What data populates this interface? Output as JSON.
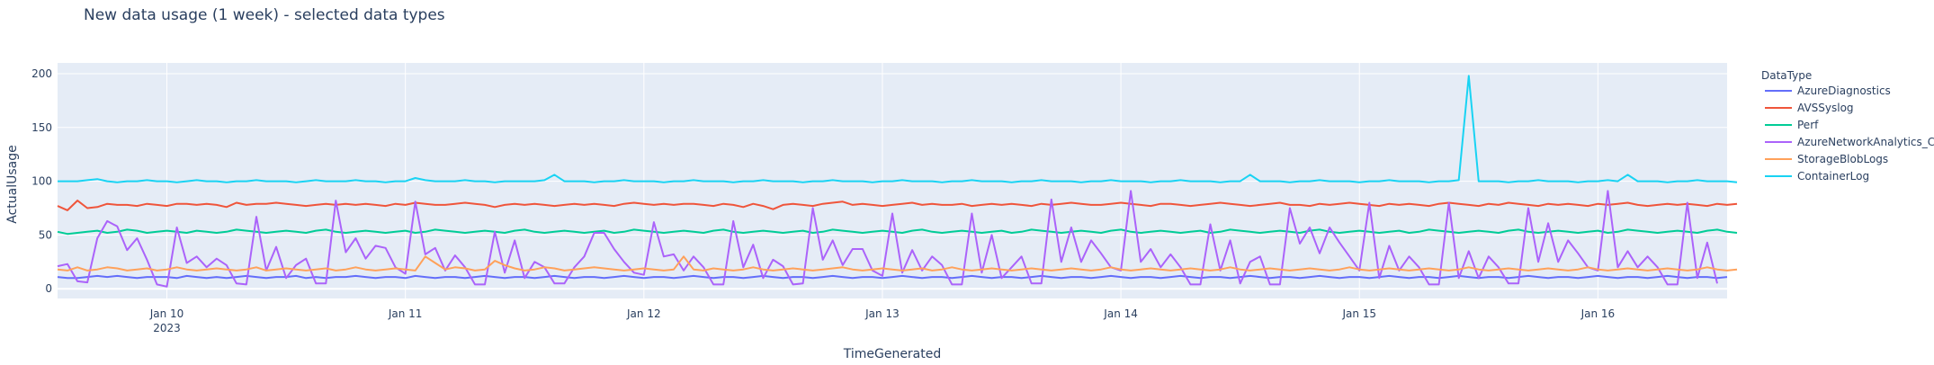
{
  "chart_data": {
    "type": "line",
    "title": "New data usage (1 week) - selected data types",
    "xlabel": "TimeGenerated",
    "ylabel": "ActualUsage",
    "x_range": [
      "2023-01-09T13:00",
      "2023-01-16T13:00"
    ],
    "ylim": [
      -9,
      210
    ],
    "y_ticks": [
      0,
      50,
      100,
      150,
      200
    ],
    "x_ticks": [
      {
        "label": "Jan 10",
        "sub": "2023",
        "t": "2023-01-10T00:00"
      },
      {
        "label": "Jan 11",
        "sub": "",
        "t": "2023-01-11T00:00"
      },
      {
        "label": "Jan 12",
        "sub": "",
        "t": "2023-01-12T00:00"
      },
      {
        "label": "Jan 13",
        "sub": "",
        "t": "2023-01-13T00:00"
      },
      {
        "label": "Jan 14",
        "sub": "",
        "t": "2023-01-14T00:00"
      },
      {
        "label": "Jan 15",
        "sub": "",
        "t": "2023-01-15T00:00"
      },
      {
        "label": "Jan 16",
        "sub": "",
        "t": "2023-01-16T00:00"
      }
    ],
    "grid": true,
    "legend_title": "DataType",
    "legend_position": "right",
    "x_start": "2023-01-09T13:00",
    "x_step_hours": 1,
    "series": [
      {
        "name": "AzureDiagnostics",
        "color": "#636efa",
        "values": [
          11,
          10,
          10,
          11,
          12,
          11,
          12,
          11,
          10,
          11,
          11,
          11,
          10,
          12,
          11,
          10,
          11,
          10,
          11,
          12,
          11,
          10,
          11,
          11,
          12,
          10,
          11,
          10,
          11,
          11,
          12,
          11,
          10,
          11,
          11,
          10,
          12,
          11,
          10,
          11,
          11,
          10,
          11,
          12,
          11,
          10,
          11,
          11,
          10,
          11,
          12,
          11,
          10,
          11,
          11,
          10,
          11,
          12,
          11,
          10,
          11,
          11,
          10,
          11,
          12,
          11,
          10,
          11,
          11,
          10,
          11,
          12,
          11,
          10,
          11,
          11,
          10,
          11,
          12,
          11,
          10,
          11,
          11,
          10,
          11,
          12,
          11,
          10,
          11,
          11,
          10,
          11,
          12,
          11,
          10,
          11,
          11,
          10,
          11,
          12,
          11,
          10,
          11,
          11,
          10,
          11,
          12,
          11,
          10,
          11,
          11,
          10,
          11,
          12,
          11,
          10,
          11,
          11,
          10,
          11,
          12,
          11,
          10,
          11,
          11,
          10,
          11,
          12,
          11,
          10,
          11,
          11,
          10,
          11,
          12,
          11,
          10,
          11,
          11,
          10,
          11,
          12,
          11,
          10,
          11,
          11,
          10,
          11,
          12,
          11,
          10,
          11,
          11,
          10,
          11,
          12,
          11,
          10,
          11,
          11,
          10,
          11,
          12,
          11,
          10,
          11,
          11,
          10,
          11
        ]
      },
      {
        "name": "AVSSyslog",
        "color": "#ef553b",
        "values": [
          77,
          73,
          82,
          75,
          76,
          79,
          78,
          78,
          77,
          79,
          78,
          77,
          79,
          79,
          78,
          79,
          78,
          76,
          80,
          78,
          79,
          79,
          80,
          79,
          78,
          77,
          78,
          79,
          78,
          79,
          78,
          79,
          78,
          77,
          79,
          78,
          80,
          79,
          78,
          78,
          79,
          80,
          79,
          78,
          76,
          78,
          79,
          78,
          79,
          78,
          77,
          78,
          79,
          78,
          79,
          78,
          77,
          79,
          80,
          79,
          78,
          79,
          78,
          79,
          79,
          78,
          77,
          79,
          78,
          76,
          79,
          77,
          74,
          78,
          79,
          78,
          77,
          79,
          80,
          81,
          78,
          79,
          78,
          77,
          78,
          79,
          80,
          78,
          79,
          78,
          78,
          79,
          77,
          78,
          79,
          78,
          79,
          78,
          77,
          79,
          78,
          79,
          80,
          79,
          78,
          78,
          79,
          80,
          79,
          78,
          77,
          79,
          79,
          78,
          77,
          78,
          79,
          80,
          79,
          78,
          77,
          78,
          79,
          80,
          78,
          78,
          77,
          79,
          78,
          79,
          80,
          79,
          78,
          77,
          79,
          78,
          79,
          78,
          77,
          79,
          80,
          79,
          78,
          77,
          79,
          78,
          80,
          79,
          78,
          77,
          79,
          78,
          79,
          78,
          77,
          79,
          78,
          79,
          80,
          78,
          77,
          78,
          79,
          78,
          79,
          78,
          77,
          79,
          78,
          79
        ]
      },
      {
        "name": "Perf",
        "color": "#00cc96",
        "values": [
          53,
          51,
          52,
          53,
          54,
          52,
          53,
          55,
          54,
          52,
          53,
          54,
          53,
          52,
          54,
          53,
          52,
          53,
          55,
          54,
          53,
          52,
          53,
          54,
          53,
          52,
          54,
          55,
          53,
          52,
          53,
          54,
          53,
          52,
          53,
          54,
          52,
          53,
          55,
          54,
          53,
          52,
          53,
          54,
          53,
          52,
          54,
          55,
          53,
          52,
          53,
          54,
          53,
          52,
          53,
          54,
          52,
          53,
          55,
          54,
          53,
          52,
          53,
          54,
          53,
          52,
          54,
          55,
          53,
          52,
          53,
          54,
          53,
          52,
          53,
          54,
          52,
          53,
          55,
          54,
          53,
          52,
          53,
          54,
          53,
          52,
          54,
          55,
          53,
          52,
          53,
          54,
          53,
          52,
          53,
          54,
          52,
          53,
          55,
          54,
          53,
          52,
          53,
          54,
          53,
          52,
          54,
          55,
          53,
          52,
          53,
          54,
          53,
          52,
          53,
          54,
          52,
          53,
          55,
          54,
          53,
          52,
          53,
          54,
          53,
          52,
          54,
          55,
          53,
          52,
          53,
          54,
          53,
          52,
          53,
          54,
          52,
          53,
          55,
          54,
          53,
          52,
          53,
          54,
          53,
          52,
          54,
          55,
          53,
          52,
          53,
          54,
          53,
          52,
          53,
          54,
          52,
          53,
          55,
          54,
          53,
          52,
          53,
          54,
          53,
          52,
          54,
          55,
          53,
          52
        ]
      },
      {
        "name": "AzureNetworkAnalytics_CL",
        "color": "#ab63fa",
        "values": [
          21,
          23,
          7,
          6,
          47,
          63,
          58,
          36,
          47,
          27,
          4,
          2,
          57,
          24,
          30,
          20,
          28,
          22,
          5,
          4,
          67,
          17,
          39,
          10,
          22,
          28,
          5,
          5,
          82,
          34,
          47,
          28,
          40,
          38,
          20,
          14,
          81,
          32,
          38,
          17,
          31,
          20,
          4,
          4,
          53,
          15,
          45,
          10,
          25,
          20,
          5,
          5,
          20,
          30,
          52,
          52,
          37,
          25,
          15,
          13,
          62,
          30,
          32,
          17,
          30,
          20,
          4,
          4,
          63,
          20,
          41,
          10,
          27,
          21,
          4,
          5,
          75,
          27,
          45,
          22,
          37,
          37,
          17,
          12,
          70,
          15,
          36,
          17,
          30,
          22,
          4,
          4,
          70,
          15,
          50,
          10,
          20,
          30,
          5,
          5,
          83,
          25,
          57,
          25,
          45,
          33,
          20,
          17,
          91,
          25,
          37,
          20,
          32,
          20,
          4,
          4,
          60,
          17,
          45,
          5,
          25,
          30,
          4,
          4,
          75,
          42,
          57,
          33,
          57,
          43,
          30,
          17,
          80,
          10,
          40,
          17,
          30,
          20,
          4,
          4,
          80,
          10,
          35,
          10,
          30,
          20,
          5,
          5,
          75,
          25,
          61,
          25,
          45,
          33,
          20,
          17,
          91,
          20,
          35,
          20,
          30,
          20,
          4,
          4,
          80,
          10,
          43,
          5
        ]
      },
      {
        "name": "StorageBlobLogs",
        "color": "#ffa15a",
        "values": [
          18,
          17,
          20,
          17,
          18,
          20,
          19,
          17,
          18,
          19,
          17,
          18,
          20,
          18,
          17,
          18,
          19,
          18,
          17,
          18,
          20,
          17,
          18,
          19,
          18,
          17,
          18,
          19,
          17,
          18,
          20,
          18,
          17,
          18,
          19,
          18,
          17,
          30,
          24,
          18,
          20,
          19,
          17,
          18,
          26,
          22,
          19,
          17,
          18,
          20,
          19,
          17,
          18,
          19,
          20,
          19,
          18,
          17,
          18,
          19,
          18,
          17,
          18,
          30,
          18,
          17,
          19,
          18,
          17,
          18,
          20,
          18,
          17,
          18,
          19,
          18,
          17,
          18,
          19,
          20,
          18,
          17,
          18,
          19,
          18,
          17,
          18,
          19,
          17,
          18,
          20,
          18,
          17,
          18,
          19,
          18,
          17,
          18,
          19,
          18,
          17,
          18,
          19,
          18,
          17,
          18,
          20,
          18,
          17,
          18,
          19,
          18,
          17,
          18,
          19,
          18,
          17,
          18,
          20,
          18,
          17,
          18,
          19,
          18,
          17,
          18,
          19,
          18,
          17,
          18,
          20,
          18,
          17,
          18,
          19,
          18,
          17,
          18,
          19,
          18,
          17,
          18,
          20,
          18,
          17,
          18,
          19,
          18,
          17,
          18,
          19,
          18,
          17,
          18,
          20,
          18,
          17,
          18,
          19,
          18,
          17,
          18,
          19,
          18,
          17,
          18,
          20,
          18,
          17,
          18
        ]
      },
      {
        "name": "ContainerLog",
        "color": "#19d3f3",
        "values": [
          100,
          100,
          100,
          101,
          102,
          100,
          99,
          100,
          100,
          101,
          100,
          100,
          99,
          100,
          101,
          100,
          100,
          99,
          100,
          100,
          101,
          100,
          100,
          100,
          99,
          100,
          101,
          100,
          100,
          100,
          101,
          100,
          100,
          99,
          100,
          100,
          103,
          101,
          100,
          100,
          100,
          101,
          100,
          100,
          99,
          100,
          100,
          100,
          100,
          101,
          106,
          100,
          100,
          100,
          99,
          100,
          100,
          101,
          100,
          100,
          100,
          99,
          100,
          100,
          101,
          100,
          100,
          100,
          99,
          100,
          100,
          101,
          100,
          100,
          100,
          99,
          100,
          100,
          101,
          100,
          100,
          100,
          99,
          100,
          100,
          101,
          100,
          100,
          100,
          99,
          100,
          100,
          101,
          100,
          100,
          100,
          99,
          100,
          100,
          101,
          100,
          100,
          100,
          99,
          100,
          100,
          101,
          100,
          100,
          100,
          99,
          100,
          100,
          101,
          100,
          100,
          100,
          99,
          100,
          100,
          106,
          100,
          100,
          100,
          99,
          100,
          100,
          101,
          100,
          100,
          100,
          99,
          100,
          100,
          101,
          100,
          100,
          100,
          99,
          100,
          100,
          101,
          198,
          100,
          100,
          100,
          99,
          100,
          100,
          101,
          100,
          100,
          100,
          99,
          100,
          100,
          101,
          100,
          106,
          100,
          100,
          100,
          99,
          100,
          100,
          101,
          100,
          100,
          100,
          99
        ]
      }
    ]
  }
}
